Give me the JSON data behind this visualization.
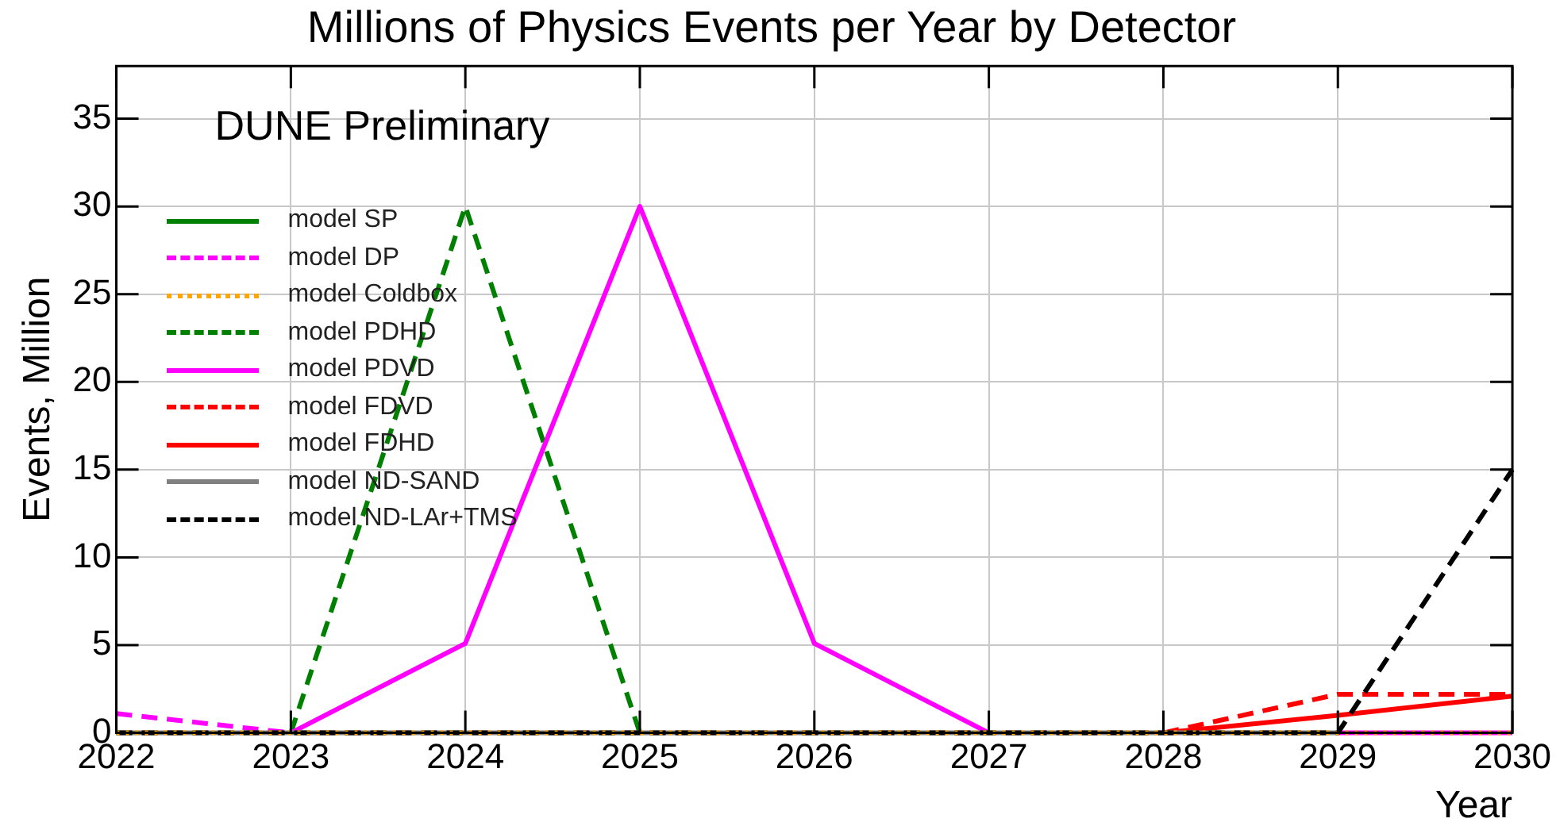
{
  "chart_data": {
    "type": "line",
    "title": "Millions of Physics Events per Year by Detector",
    "xlabel": "Year",
    "ylabel": "Events, Million",
    "annotations": [
      "DUNE Preliminary"
    ],
    "x": [
      2022,
      2023,
      2024,
      2025,
      2026,
      2027,
      2028,
      2029,
      2030
    ],
    "xlim": [
      2022,
      2030
    ],
    "xticks": [
      2022,
      2023,
      2024,
      2025,
      2026,
      2027,
      2028,
      2029,
      2030
    ],
    "ylim": [
      0,
      38
    ],
    "yticks": [
      0,
      5,
      10,
      15,
      20,
      25,
      30,
      35
    ],
    "grid": true,
    "legend": "top left",
    "marker": "none",
    "series": [
      {
        "name": "model SP",
        "color": "#008000",
        "line_style": "solid",
        "values": [
          null,
          null,
          null,
          null,
          null,
          null,
          null,
          null,
          null
        ]
      },
      {
        "name": "model DP",
        "color": "#ff00ff",
        "line_style": "dashed",
        "values": [
          1.1,
          0,
          null,
          null,
          null,
          null,
          null,
          null,
          null
        ]
      },
      {
        "name": "model Coldbox",
        "color": "#ffa500",
        "line_style": "dotted",
        "values": [
          0,
          0,
          0,
          0,
          0,
          0,
          0,
          0,
          0
        ]
      },
      {
        "name": "model PDHD",
        "color": "#008000",
        "line_style": "dashed",
        "values": [
          null,
          0,
          30,
          0,
          null,
          null,
          null,
          null,
          null
        ]
      },
      {
        "name": "model PDVD",
        "color": "#ff00ff",
        "line_style": "solid",
        "values": [
          null,
          0,
          5.1,
          30,
          5.1,
          0,
          null,
          0,
          0
        ]
      },
      {
        "name": "model FDVD",
        "color": "#ff0000",
        "line_style": "dashed",
        "values": [
          null,
          null,
          null,
          null,
          null,
          null,
          0,
          2.2,
          2.2
        ]
      },
      {
        "name": "model FDHD",
        "color": "#ff0000",
        "line_style": "solid",
        "values": [
          null,
          null,
          null,
          null,
          null,
          null,
          0,
          1.0,
          2.1
        ]
      },
      {
        "name": "model ND-SAND",
        "color": "#808080",
        "line_style": "solid",
        "values": [
          0,
          0,
          0,
          0,
          0,
          0,
          0,
          0,
          null
        ]
      },
      {
        "name": "model ND-LAr+TMS",
        "color": "#000000",
        "line_style": "dashed",
        "values": [
          0,
          0,
          0,
          0,
          0,
          0,
          0,
          0,
          15
        ]
      }
    ]
  }
}
